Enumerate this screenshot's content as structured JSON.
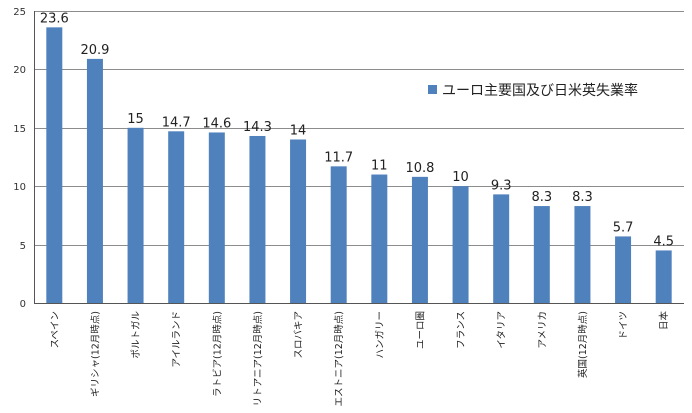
{
  "chart_data": {
    "type": "bar",
    "categories": [
      "スペイン",
      "ギリシャ(12月時点)",
      "ポルトガル",
      "アイルランド",
      "ラトビア(12月時点)",
      "リトアニア(12月時点)",
      "スロバキア",
      "エストニア(12月時点)",
      "ハンガリー",
      "ユーロ圏",
      "フランス",
      "イタリア",
      "アメリカ",
      "英国(12月時点)",
      "ドイツ",
      "日本"
    ],
    "series": [
      {
        "name": "ユーロ主要国及び日米英失業率",
        "values": [
          23.6,
          20.9,
          15,
          14.7,
          14.6,
          14.3,
          14,
          11.7,
          11,
          10.8,
          10,
          9.3,
          8.3,
          8.3,
          5.7,
          4.5
        ],
        "labels": [
          "23.6",
          "20.9",
          "15",
          "14.7",
          "14.6",
          "14.3",
          "14",
          "11.7",
          "11",
          "10.8",
          "10",
          "9.3",
          "8.3",
          "8.3",
          "5.7",
          "4.5"
        ]
      }
    ],
    "yticks": [
      "0",
      "5",
      "10",
      "15",
      "20",
      "25"
    ],
    "ylim": [
      0,
      25
    ],
    "grid": true,
    "legend": "right",
    "colors": {
      "bar": "#4f81bd",
      "grid": "#8c8c8c"
    }
  }
}
